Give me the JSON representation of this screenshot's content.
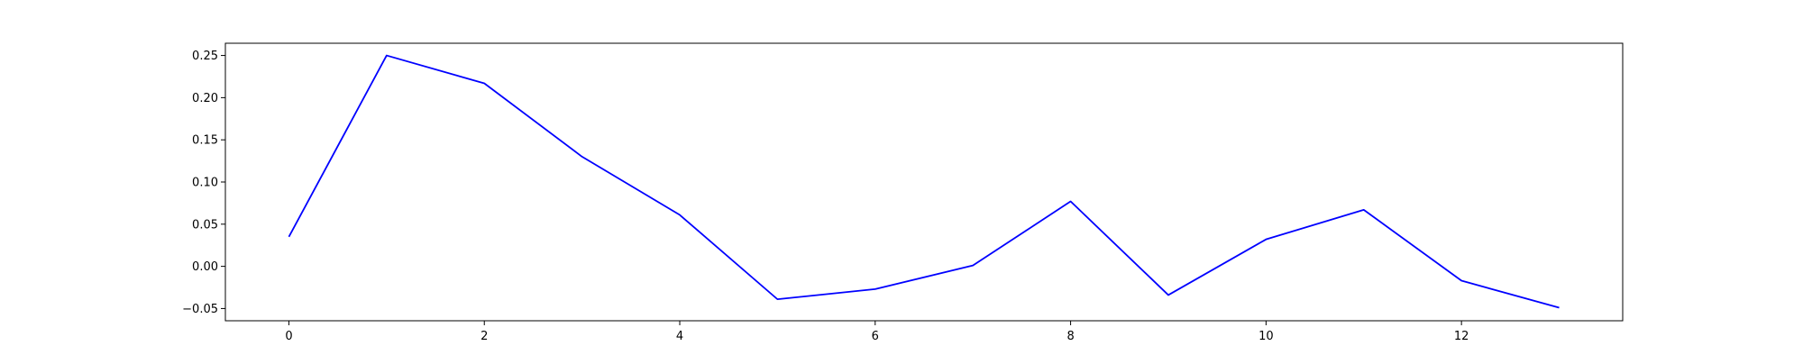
{
  "chart_data": {
    "type": "line",
    "title": "",
    "xlabel": "",
    "ylabel": "",
    "xlim": [
      -0.65,
      13.65
    ],
    "ylim": [
      -0.0645,
      0.2645
    ],
    "x_ticks": [
      0,
      2,
      4,
      6,
      8,
      10,
      12
    ],
    "x_tick_labels": [
      "0",
      "2",
      "4",
      "6",
      "8",
      "10",
      "12"
    ],
    "y_ticks": [
      -0.05,
      0.0,
      0.05,
      0.1,
      0.15,
      0.2,
      0.25
    ],
    "y_tick_labels": [
      "−0.05",
      "0.00",
      "0.05",
      "0.10",
      "0.15",
      "0.20",
      "0.25"
    ],
    "grid": false,
    "legend": "none",
    "series": [
      {
        "color": "#0000ff",
        "x": [
          0,
          1,
          2,
          3,
          4,
          5,
          6,
          7,
          8,
          9,
          10,
          11,
          12,
          13
        ],
        "y": [
          0.035,
          0.25,
          0.217,
          0.13,
          0.061,
          -0.039,
          -0.027,
          0.001,
          0.077,
          -0.034,
          0.032,
          0.067,
          -0.017,
          -0.049
        ]
      }
    ]
  }
}
